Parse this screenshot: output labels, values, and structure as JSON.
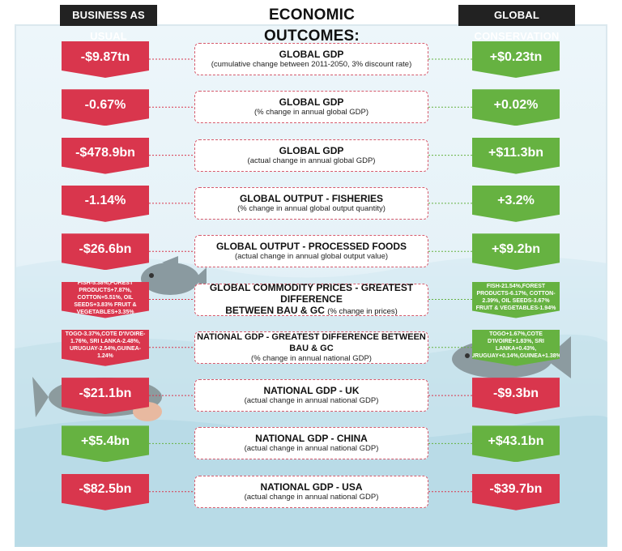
{
  "headers": {
    "left": "BUSINESS AS USUAL",
    "middle": "ECONOMIC OUTCOMES:",
    "right": "GLOBAL CONSERVATION"
  },
  "colors": {
    "negative": "#d9364d",
    "positive": "#66b241"
  },
  "rows": [
    {
      "left": "-$9.87tn",
      "left_color": "red",
      "title": "GLOBAL GDP",
      "subtitle": "(cumulative change between 2011-2050, 3% discount rate)",
      "right": "+$0.23tn",
      "right_color": "green"
    },
    {
      "left": "-0.67%",
      "left_color": "red",
      "title": "GLOBAL GDP",
      "subtitle": "(% change in annual global GDP)",
      "right": "+0.02%",
      "right_color": "green"
    },
    {
      "left": "-$478.9bn",
      "left_color": "red",
      "title": "GLOBAL GDP",
      "subtitle": "(actual change in annual global GDP)",
      "right": "+$11.3bn",
      "right_color": "green"
    },
    {
      "left": "-1.14%",
      "left_color": "red",
      "title": "GLOBAL OUTPUT - FISHERIES",
      "subtitle": "(% change in annual global output quantity)",
      "right": "+3.2%",
      "right_color": "green"
    },
    {
      "left": "-$26.6bn",
      "left_color": "red",
      "title": "GLOBAL OUTPUT - PROCESSED FOODS",
      "subtitle": "(actual change in annual global output value)",
      "right": "+$9.2bn",
      "right_color": "green"
    },
    {
      "left": "FISH-5.38%,FOREST PRODUCTS+7.87%, COTTON+5.51%, OIL SEEDS+3.83% FRUIT & VEGETABLES+3.35%",
      "left_color": "red",
      "title": "GLOBAL COMMODITY PRICES - GREATEST DIFFERENCE",
      "title2": "BETWEEN BAU & GC",
      "subtitle_inline": "(% change in prices)",
      "right": "FISH-21.54%,FOREST PRODUCTS-6.17%, COTTON-2.39%, OIL SEEDS-3.67% FRUIT & VEGETABLES-1.94%",
      "right_color": "green"
    },
    {
      "left": "TOGO-3.37%,COTE D'IVOIRE-1.76%, SRI LANKA-2.48%, URUGUAY-2.54%,GUINEA-1.24%",
      "left_color": "red",
      "title": "NATIONAL GDP - GREATEST DIFFERENCE BETWEEN BAU & GC",
      "subtitle": "(% change in annual national GDP)",
      "right": "TOGO+1.67%,COTE D'IVOIRE+1.83%, SRI LANKA+0.43%, URUGUAY+0.14%,GUINEA+1.38%",
      "right_color": "green"
    },
    {
      "left": "-$21.1bn",
      "left_color": "red",
      "title": "NATIONAL GDP - UK",
      "subtitle": "(actual change in annual national GDP)",
      "right": "-$9.3bn",
      "right_color": "red"
    },
    {
      "left": "+$5.4bn",
      "left_color": "green",
      "title": "NATIONAL GDP - CHINA",
      "subtitle": "(actual change in annual national GDP)",
      "right": "+$43.1bn",
      "right_color": "green"
    },
    {
      "left": "-$82.5bn",
      "left_color": "red",
      "title": "NATIONAL GDP - USA",
      "subtitle": "(actual change in annual national GDP)",
      "right": "-$39.7bn",
      "right_color": "red"
    }
  ]
}
